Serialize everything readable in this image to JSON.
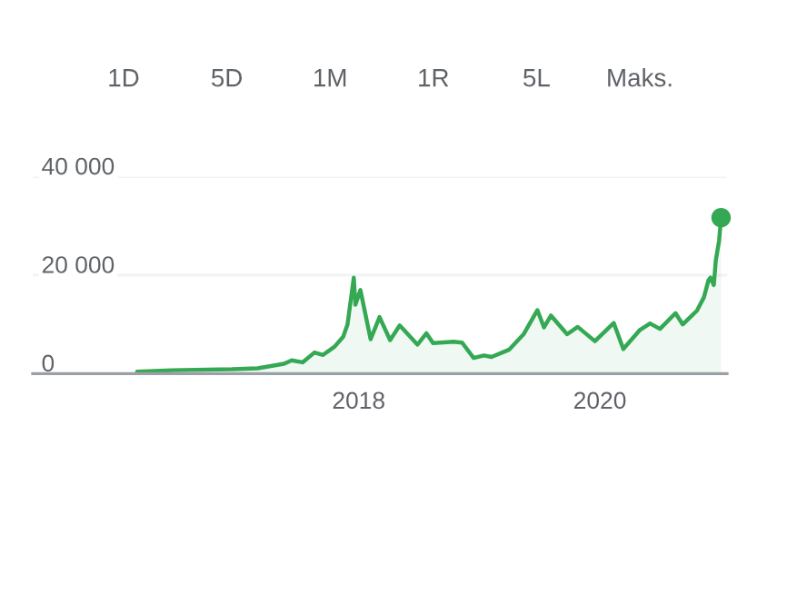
{
  "chart_data": {
    "type": "area",
    "annotations": [
      "1D",
      "5D",
      "1M",
      "1R",
      "5L",
      "Maks."
    ],
    "series": [
      {
        "color": "#34a853",
        "x": [
          "2016-03-01",
          "2016-06-15",
          "2016-12-15",
          "2017-03-01",
          "2017-05-20",
          "2017-06-12",
          "2017-07-15",
          "2017-08-20",
          "2017-09-15",
          "2017-10-20",
          "2017-11-15",
          "2017-11-28",
          "2017-12-17",
          "2017-12-22",
          "2018-01-06",
          "2018-02-06",
          "2018-03-05",
          "2018-04-06",
          "2018-05-05",
          "2018-06-28",
          "2018-07-25",
          "2018-08-14",
          "2018-10-15",
          "2018-11-10",
          "2018-12-15",
          "2019-01-15",
          "2019-02-07",
          "2019-04-02",
          "2019-05-15",
          "2019-06-26",
          "2019-07-16",
          "2019-08-06",
          "2019-09-24",
          "2019-10-26",
          "2019-12-17",
          "2020-02-12",
          "2020-03-12",
          "2020-04-30",
          "2020-06-01",
          "2020-07-01",
          "2020-08-17",
          "2020-09-08",
          "2020-10-21",
          "2020-11-11",
          "2020-11-25",
          "2020-12-01",
          "2020-12-11",
          "2020-12-17",
          "2020-12-27",
          "2021-01-02"
        ],
        "values": [
          400,
          700,
          900,
          1100,
          2000,
          2700,
          2300,
          4300,
          3800,
          5500,
          7500,
          10000,
          19500,
          14000,
          17000,
          7000,
          11500,
          6800,
          9800,
          5900,
          8200,
          6200,
          6500,
          6300,
          3200,
          3700,
          3400,
          4900,
          8000,
          12900,
          9400,
          11800,
          8000,
          9500,
          6600,
          10300,
          5000,
          8800,
          10200,
          9100,
          12300,
          10000,
          12800,
          15500,
          19000,
          19500,
          18000,
          23000,
          27000,
          31700
        ]
      },
      {
        "type": "scatter",
        "color": "#34a853",
        "marker": "circle",
        "x": [
          "2021-01-02"
        ],
        "values": [
          31700
        ]
      }
    ],
    "xlim": [
      "2015-04-20",
      "2021-01-20"
    ],
    "xticks": [
      "2018",
      "2020"
    ],
    "ylim": [
      0,
      40000
    ],
    "yticks": [
      {
        "value": 0,
        "label": "0"
      },
      {
        "value": 20000,
        "label": "20 000"
      },
      {
        "value": 40000,
        "label": "40 000"
      }
    ],
    "grid": "y",
    "legend": false
  }
}
